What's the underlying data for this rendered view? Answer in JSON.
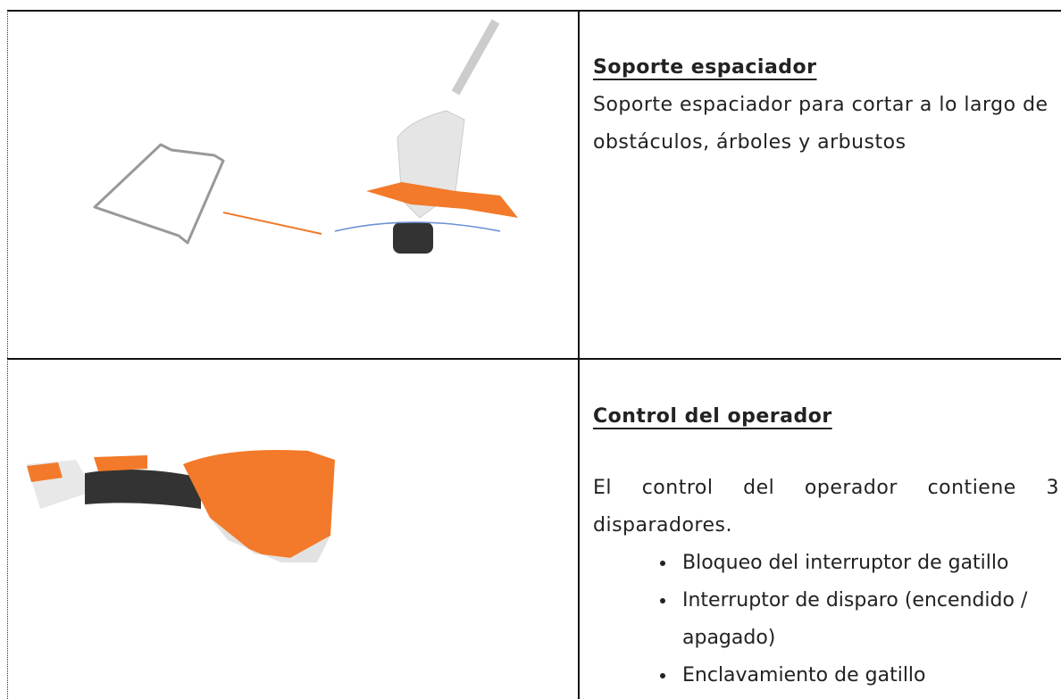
{
  "table": {
    "rows": [
      {
        "title": "Soporte espaciador",
        "text": "Soporte espaciador para cortar a lo largo de obstáculos, árboles y arbustos"
      },
      {
        "title": "Control del operador",
        "text": "El control del operador contiene 3 disparadores.",
        "items": [
          "Bloqueo del interruptor de gatillo",
          "Interruptor de disparo (encendido / apagado)",
          "Enclavamiento de gatillo"
        ]
      }
    ]
  }
}
